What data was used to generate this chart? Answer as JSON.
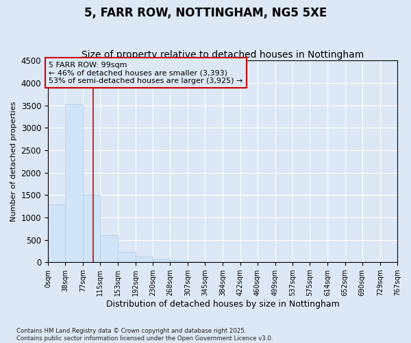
{
  "title": "5, FARR ROW, NOTTINGHAM, NG5 5XE",
  "subtitle": "Size of property relative to detached houses in Nottingham",
  "xlabel": "Distribution of detached houses by size in Nottingham",
  "ylabel": "Number of detached properties",
  "bar_color": "#d0e4f7",
  "bar_edge_color": "#b0c8e0",
  "bin_edges": [
    0,
    38,
    77,
    115,
    153,
    192,
    230,
    268,
    307,
    345,
    384,
    422,
    460,
    499,
    537,
    575,
    614,
    652,
    690,
    729,
    767
  ],
  "bar_values": [
    1290,
    3530,
    1500,
    600,
    240,
    130,
    70,
    30,
    15,
    8,
    4,
    3,
    2,
    1,
    1,
    1,
    0,
    0,
    0,
    0
  ],
  "property_size": 99,
  "property_label": "5 FARR ROW: 99sqm",
  "pct_smaller": 46,
  "pct_larger_semi": 53,
  "count_smaller": 3393,
  "count_larger_semi": 3925,
  "vline_color": "#cc0000",
  "annotation_box_color": "#cc0000",
  "ylim": [
    0,
    4500
  ],
  "background_color": "#dce8f5",
  "footer_line1": "Contains HM Land Registry data © Crown copyright and database right 2025.",
  "footer_line2": "Contains public sector information licensed under the Open Government Licence v3.0.",
  "title_fontsize": 12,
  "subtitle_fontsize": 10,
  "tick_label_fontsize": 7,
  "ylabel_fontsize": 8,
  "xlabel_fontsize": 9
}
